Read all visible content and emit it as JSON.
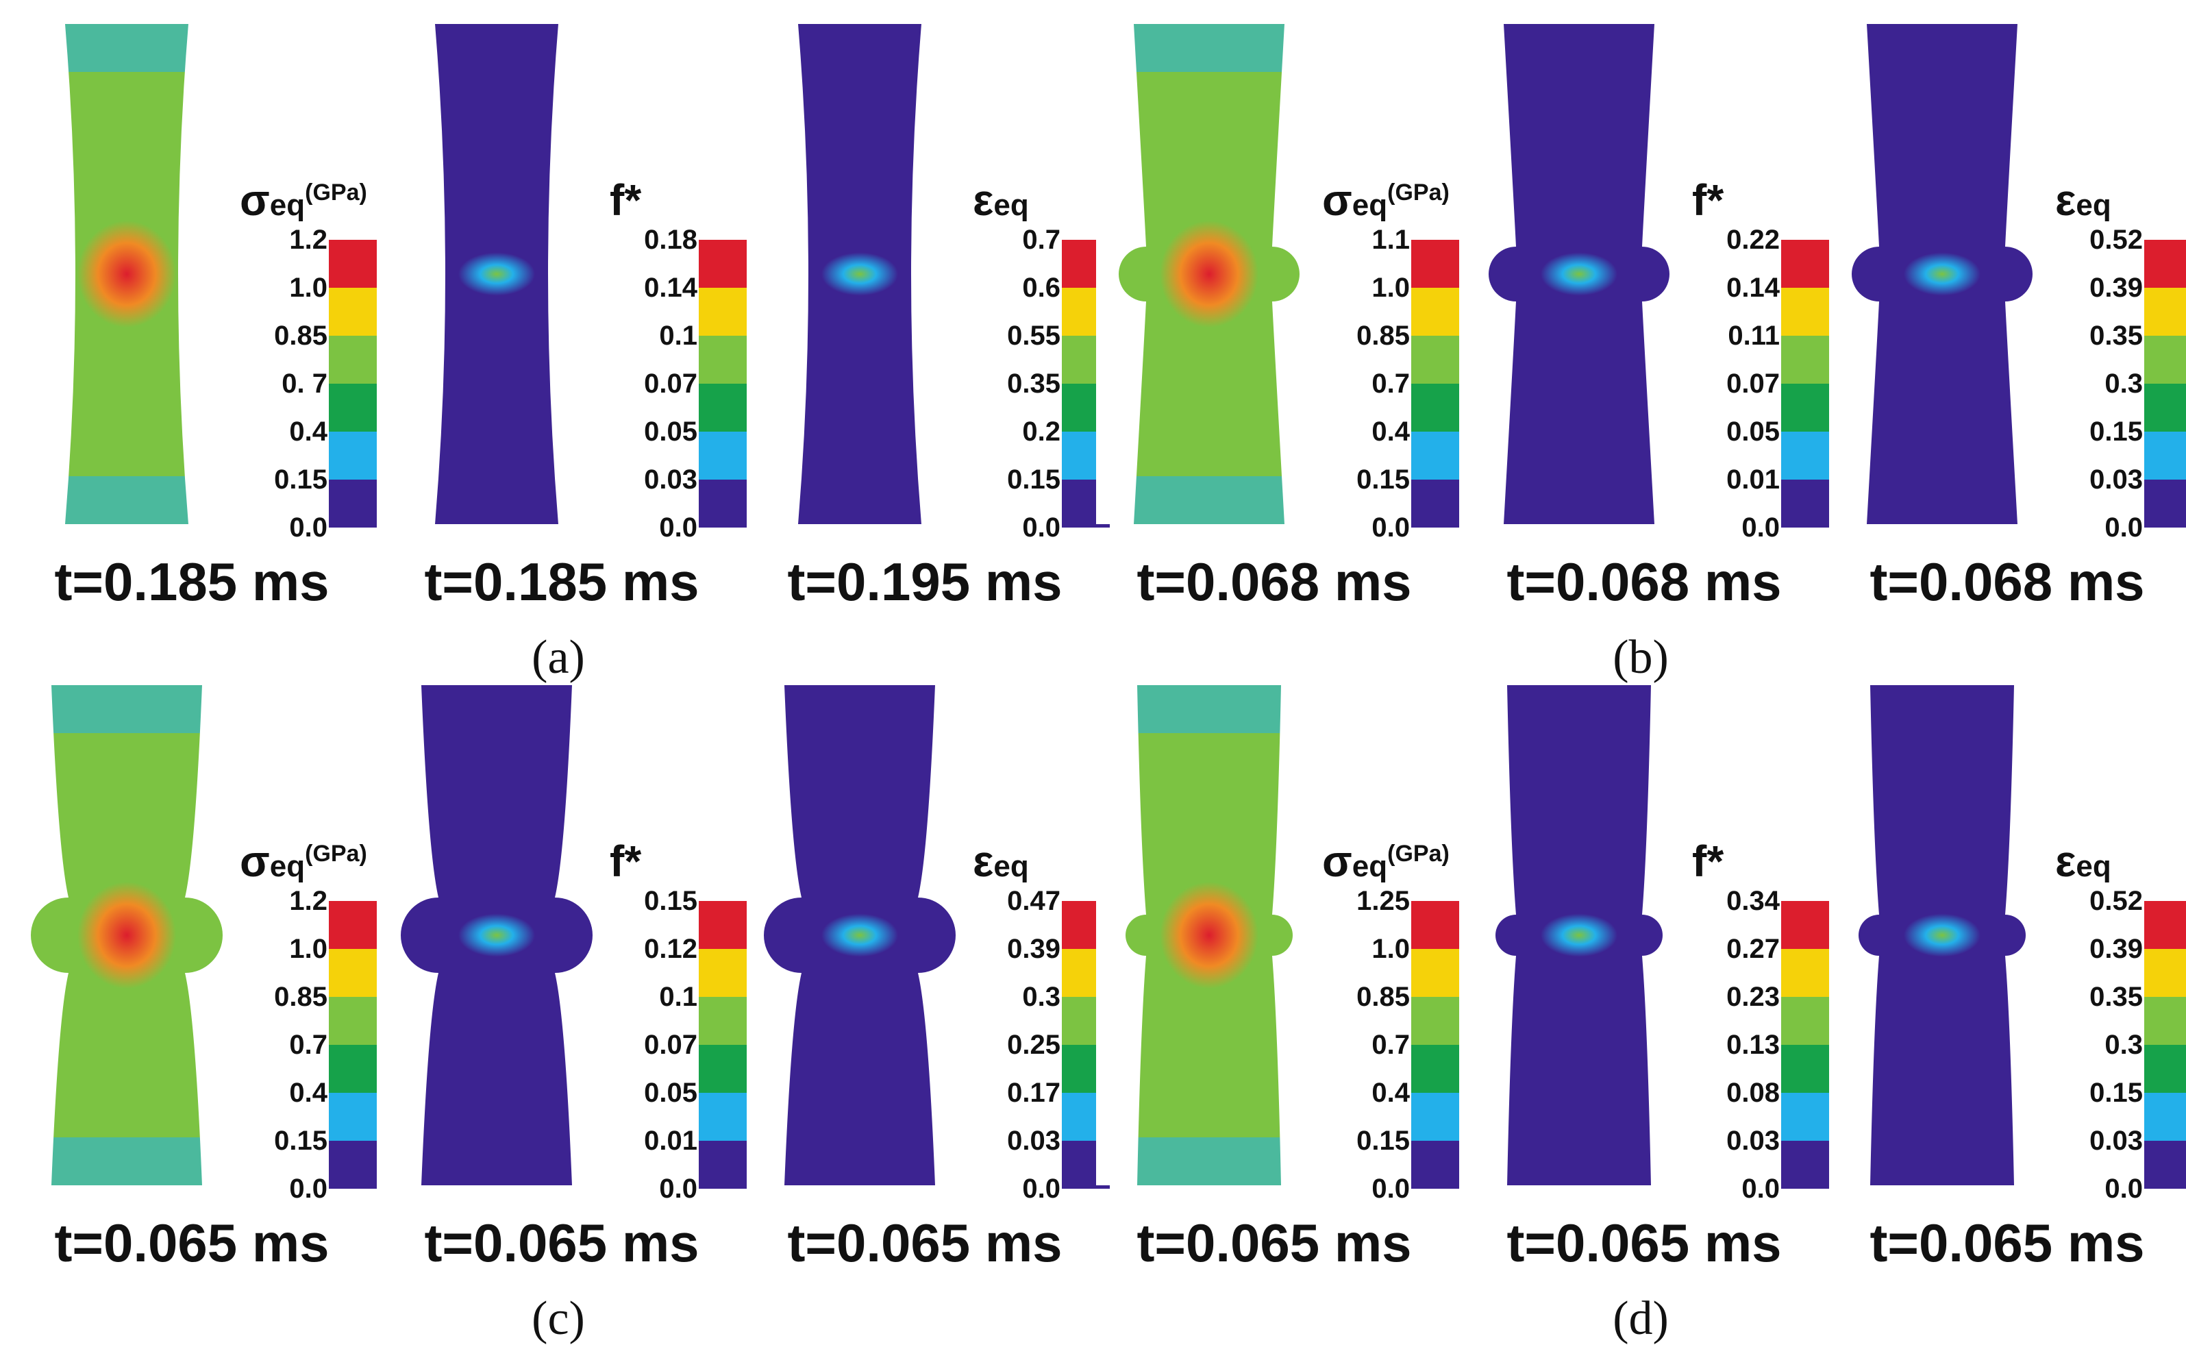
{
  "colorbar_colors": [
    "#dc1e2d",
    "#f5d20a",
    "#7cc342",
    "#16a24a",
    "#23b0ea",
    "#3c2391"
  ],
  "colors": {
    "background": "#ffffff",
    "specimen_base": "#3c2391",
    "contour_high": "#dc1e2d",
    "contour_mid": "#7cc342",
    "contour_low": "#23b0ea"
  },
  "panels": [
    {
      "label": "(a)",
      "cells": [
        {
          "symbol": "σ",
          "subscript": "eq",
          "unit": "(GPa)",
          "ticks": [
            "1.2",
            "1.0",
            "0.85",
            "0. 7",
            "0.4",
            "0.15",
            "0.0"
          ],
          "time": "t=0.185 ms"
        },
        {
          "symbol": "f*",
          "subscript": "",
          "unit": "",
          "ticks": [
            "0.18",
            "0.14",
            "0.1",
            "0.07",
            "0.05",
            "0.03",
            "0.0"
          ],
          "time": "t=0.185 ms"
        },
        {
          "symbol": "ε",
          "subscript": "eq",
          "unit": "",
          "ticks": [
            "0.7",
            "0.6",
            "0.55",
            "0.35",
            "0.2",
            "0.15",
            "0.0"
          ],
          "time": "t=0.195 ms"
        }
      ]
    },
    {
      "label": "(b)",
      "cells": [
        {
          "symbol": "σ",
          "subscript": "eq",
          "unit": "(GPa)",
          "ticks": [
            "1.1",
            "1.0",
            "0.85",
            "0.7",
            "0.4",
            "0.15",
            "0.0"
          ],
          "time": "t=0.068 ms"
        },
        {
          "symbol": "f*",
          "subscript": "",
          "unit": "",
          "ticks": [
            "0.22",
            "0.14",
            "0.11",
            "0.07",
            "0.05",
            "0.01",
            "0.0"
          ],
          "time": "t=0.068 ms"
        },
        {
          "symbol": "ε",
          "subscript": "eq",
          "unit": "",
          "ticks": [
            "0.52",
            "0.39",
            "0.35",
            "0.3",
            "0.15",
            "0.03",
            "0.0"
          ],
          "time": "t=0.068 ms"
        }
      ]
    },
    {
      "label": "(c)",
      "cells": [
        {
          "symbol": "σ",
          "subscript": "eq",
          "unit": "(GPa)",
          "ticks": [
            "1.2",
            "1.0",
            "0.85",
            "0.7",
            "0.4",
            "0.15",
            "0.0"
          ],
          "time": "t=0.065 ms"
        },
        {
          "symbol": "f*",
          "subscript": "",
          "unit": "",
          "ticks": [
            "0.15",
            "0.12",
            "0.1",
            "0.07",
            "0.05",
            "0.01",
            "0.0"
          ],
          "time": "t=0.065 ms"
        },
        {
          "symbol": "ε",
          "subscript": "eq",
          "unit": "",
          "ticks": [
            "0.47",
            "0.39",
            "0.3",
            "0.25",
            "0.17",
            "0.03",
            "0.0"
          ],
          "time": "t=0.065 ms"
        }
      ]
    },
    {
      "label": "(d)",
      "cells": [
        {
          "symbol": "σ",
          "subscript": "eq",
          "unit": "(GPa)",
          "ticks": [
            "1.25",
            "1.0",
            "0.85",
            "0.7",
            "0.4",
            "0.15",
            "0.0"
          ],
          "time": "t=0.065 ms"
        },
        {
          "symbol": "f*",
          "subscript": "",
          "unit": "",
          "ticks": [
            "0.34",
            "0.27",
            "0.23",
            "0.13",
            "0.08",
            "0.03",
            "0.0"
          ],
          "time": "t=0.065 ms"
        },
        {
          "symbol": "ε",
          "subscript": "eq",
          "unit": "",
          "ticks": [
            "0.52",
            "0.39",
            "0.35",
            "0.3",
            "0.15",
            "0.03",
            "0.0"
          ],
          "time": "t=0.065 ms"
        }
      ]
    }
  ]
}
